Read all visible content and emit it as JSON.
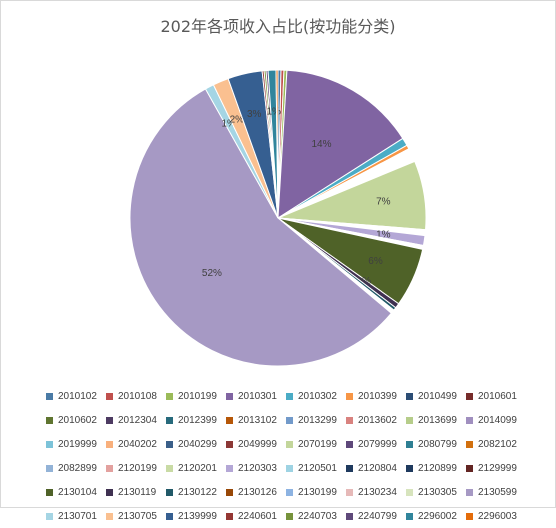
{
  "chart_data": {
    "type": "pie",
    "title": "202年各项收入占比(按功能分类)",
    "slices": [
      {
        "code": "2010102",
        "value": 0.3,
        "color": "#4a7ba6",
        "label": ""
      },
      {
        "code": "2010108",
        "value": 0.3,
        "color": "#c0504d",
        "label": ""
      },
      {
        "code": "2010199",
        "value": 0.3,
        "color": "#9bbb59",
        "label": ""
      },
      {
        "code": "2010301",
        "value": 14.0,
        "color": "#8064a2",
        "label": "14%"
      },
      {
        "code": "2010302",
        "value": 0.8,
        "color": "#4bacc6",
        "label": ""
      },
      {
        "code": "2010399",
        "value": 0.4,
        "color": "#f79646",
        "label": ""
      },
      {
        "code": "2010499",
        "value": 0.1,
        "color": "#2c4d75",
        "label": ""
      },
      {
        "code": "2010601",
        "value": 0.1,
        "color": "#772c2a",
        "label": ""
      },
      {
        "code": "2010602",
        "value": 0.1,
        "color": "#5f7530",
        "label": ""
      },
      {
        "code": "2012304",
        "value": 0.1,
        "color": "#4d3b62",
        "label": ""
      },
      {
        "code": "2012399",
        "value": 0.1,
        "color": "#276a7c",
        "label": ""
      },
      {
        "code": "2013102",
        "value": 0.1,
        "color": "#b65708",
        "label": ""
      },
      {
        "code": "2013299",
        "value": 0.1,
        "color": "#729aca",
        "label": ""
      },
      {
        "code": "2013602",
        "value": 0.1,
        "color": "#d9827f",
        "label": ""
      },
      {
        "code": "2013699",
        "value": 0.1,
        "color": "#b6cd8a",
        "label": ""
      },
      {
        "code": "2014099",
        "value": 0.1,
        "color": "#a08fbf",
        "label": ""
      },
      {
        "code": "2019999",
        "value": 0.1,
        "color": "#7cc3d9",
        "label": ""
      },
      {
        "code": "2040202",
        "value": 0.1,
        "color": "#f9b07c",
        "label": ""
      },
      {
        "code": "2040299",
        "value": 0.1,
        "color": "#3a5f89",
        "label": ""
      },
      {
        "code": "2049999",
        "value": 0.1,
        "color": "#8c3836",
        "label": ""
      },
      {
        "code": "2070199",
        "value": 7.0,
        "color": "#c3d69b",
        "label": "7%"
      },
      {
        "code": "2079999",
        "value": 0.1,
        "color": "#5e487a",
        "label": ""
      },
      {
        "code": "2080799",
        "value": 0.1,
        "color": "#2e7f93",
        "label": ""
      },
      {
        "code": "2082102",
        "value": 0.1,
        "color": "#d2700e",
        "label": ""
      },
      {
        "code": "2082899",
        "value": 0.1,
        "color": "#93b3d7",
        "label": ""
      },
      {
        "code": "2120199",
        "value": 0.1,
        "color": "#e3a19f",
        "label": ""
      },
      {
        "code": "2120201",
        "value": 0.1,
        "color": "#c9dba5",
        "label": ""
      },
      {
        "code": "2120303",
        "value": 1.0,
        "color": "#b4a7d6",
        "label": "1%"
      },
      {
        "code": "2120501",
        "value": 0.1,
        "color": "#9ed3e3",
        "label": ""
      },
      {
        "code": "2120804",
        "value": 0.1,
        "color": "#1f3a5e",
        "label": ""
      },
      {
        "code": "2120899",
        "value": 0.1,
        "color": "#1f3a5e",
        "label": ""
      },
      {
        "code": "2129999",
        "value": 0.1,
        "color": "#632523",
        "label": ""
      },
      {
        "code": "2130104",
        "value": 6.0,
        "color": "#4f6228",
        "label": "6%"
      },
      {
        "code": "2130119",
        "value": 0.5,
        "color": "#3f3151",
        "label": "0%"
      },
      {
        "code": "2130122",
        "value": 0.3,
        "color": "#215968",
        "label": ""
      },
      {
        "code": "2130126",
        "value": 0.1,
        "color": "#984807",
        "label": ""
      },
      {
        "code": "2130199",
        "value": 0.1,
        "color": "#8db3e2",
        "label": ""
      },
      {
        "code": "2130234",
        "value": 0.1,
        "color": "#e6b9b8",
        "label": ""
      },
      {
        "code": "2130305",
        "value": 0.1,
        "color": "#d7e4bd",
        "label": ""
      },
      {
        "code": "2130599",
        "value": 52.0,
        "color": "#a699c4",
        "label": "52%"
      },
      {
        "code": "2130701",
        "value": 0.9,
        "color": "#a5d5e4",
        "label": "1%"
      },
      {
        "code": "2130705",
        "value": 1.6,
        "color": "#fac090",
        "label": "2%"
      },
      {
        "code": "2139999",
        "value": 3.5,
        "color": "#365f91",
        "label": "3%"
      },
      {
        "code": "2240601",
        "value": 0.2,
        "color": "#953734",
        "label": ""
      },
      {
        "code": "2240703",
        "value": 0.2,
        "color": "#77933c",
        "label": ""
      },
      {
        "code": "2240799",
        "value": 0.2,
        "color": "#5f497a",
        "label": ""
      },
      {
        "code": "2296002",
        "value": 0.8,
        "color": "#31859c",
        "label": "1%"
      },
      {
        "code": "2296003",
        "value": 0.2,
        "color": "#e46c0a",
        "label": ""
      }
    ]
  }
}
